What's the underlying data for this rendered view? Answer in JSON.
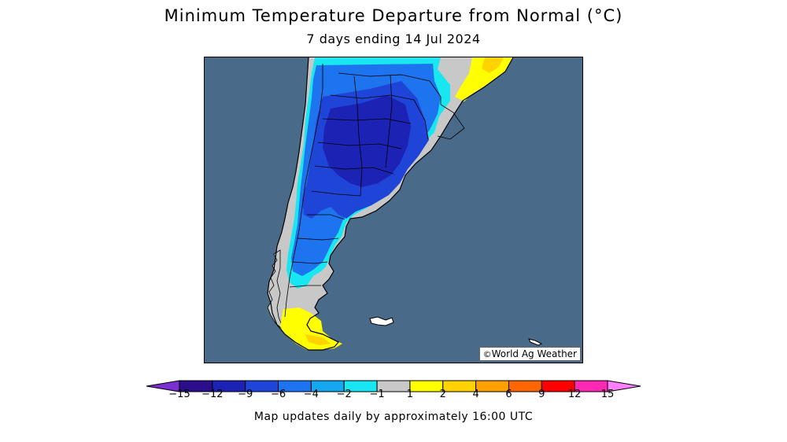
{
  "title": "Minimum Temperature Departure from Normal (°C)",
  "subtitle": "7 days ending 14 Jul 2024",
  "credit": {
    "symbol": "©",
    "text": "World Ag Weather"
  },
  "footnote": "Map updates daily by approximately 16:00 UTC",
  "map": {
    "region": "Southern South America (Argentina, Chile, Uruguay)",
    "ocean_color": "#4a6a8a",
    "border_color": "#000000"
  },
  "legend": {
    "tick_labels": [
      "−15",
      "−12",
      "−9",
      "−6",
      "−4",
      "−2",
      "−1",
      "1",
      "2",
      "4",
      "6",
      "9",
      "12",
      "15"
    ],
    "colors": [
      "#7a2fd0",
      "#2a0e8c",
      "#1c22b4",
      "#1f44d8",
      "#1e73ee",
      "#15a8f0",
      "#18e6f0",
      "#c8c8c8",
      "#ffff00",
      "#ffd200",
      "#ffa000",
      "#ff6600",
      "#ff0000",
      "#ff28b4",
      "#ff80ff"
    ]
  }
}
